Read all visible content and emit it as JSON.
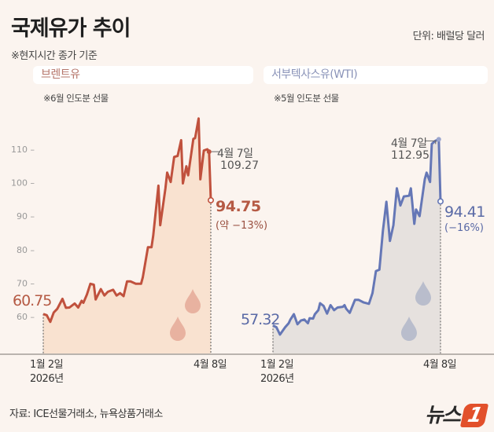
{
  "title": "국제유가 추이",
  "subtitle": "※현지시간 종가 기준",
  "unit": "단위: 배럴당 달러",
  "source": "자료: ICE선물거래소, 뉴욕상품거래소",
  "logo": {
    "text": "뉴스",
    "mark": "1"
  },
  "colors": {
    "brent_line": "#c0513d",
    "brent_fill": "#f9e2d0",
    "wti_line": "#6577b6",
    "wti_fill": "#e6e1de",
    "background": "#fbf4ef"
  },
  "chart_data": [
    {
      "type": "area",
      "title": "브렌트유",
      "note": "※6월 인도분 선물",
      "ylim": [
        50,
        120
      ],
      "yticks": [
        60,
        70,
        80,
        90,
        100,
        110
      ],
      "xlim": [
        "2026-01-02",
        "2026-04-08"
      ],
      "xtick_labels": {
        "start": "1월 2일",
        "start_year": "2026년",
        "end": "4월 8일"
      },
      "start_label": "60.75",
      "peak_annotation": {
        "date_label": "4월 7일",
        "value": "109.27"
      },
      "end_annotation": {
        "value": "94.75",
        "change": "(약 −13%)"
      },
      "points": [
        [
          "2026-01-02",
          60.75
        ],
        [
          "2026-01-04",
          60.4
        ],
        [
          "2026-01-06",
          58.4
        ],
        [
          "2026-01-08",
          61.2
        ],
        [
          "2026-01-10",
          62.3
        ],
        [
          "2026-01-13",
          65.3
        ],
        [
          "2026-01-15",
          62.6
        ],
        [
          "2026-01-17",
          62.7
        ],
        [
          "2026-01-20",
          63.9
        ],
        [
          "2026-01-22",
          62.7
        ],
        [
          "2026-01-24",
          64.7
        ],
        [
          "2026-01-25",
          64.1
        ],
        [
          "2026-01-27",
          66.6
        ],
        [
          "2026-01-29",
          69.8
        ],
        [
          "2026-01-31",
          69.5
        ],
        [
          "2026-02-01",
          65.1
        ],
        [
          "2026-02-04",
          68.2
        ],
        [
          "2026-02-06",
          66.3
        ],
        [
          "2026-02-08",
          67.4
        ],
        [
          "2026-02-11",
          68.0
        ],
        [
          "2026-02-13",
          66.3
        ],
        [
          "2026-02-15",
          67.0
        ],
        [
          "2026-02-17",
          66.1
        ],
        [
          "2026-02-19",
          70.5
        ],
        [
          "2026-02-21",
          70.5
        ],
        [
          "2026-02-24",
          69.8
        ],
        [
          "2026-02-27",
          69.8
        ],
        [
          "2026-02-28",
          71.7
        ],
        [
          "2026-03-03",
          80.7
        ],
        [
          "2026-03-05",
          80.7
        ],
        [
          "2026-03-06",
          84.2
        ],
        [
          "2026-03-09",
          99.1
        ],
        [
          "2026-03-10",
          87.3
        ],
        [
          "2026-03-13",
          98.3
        ],
        [
          "2026-03-14",
          103.0
        ],
        [
          "2026-03-16",
          100.2
        ],
        [
          "2026-03-18",
          107.7
        ],
        [
          "2026-03-20",
          108.0
        ],
        [
          "2026-03-22",
          112.7
        ],
        [
          "2026-03-23",
          99.8
        ],
        [
          "2026-03-25",
          104.9
        ],
        [
          "2026-03-26",
          102.2
        ],
        [
          "2026-03-29",
          113.1
        ],
        [
          "2026-03-30",
          113.3
        ],
        [
          "2026-04-01",
          119.2
        ],
        [
          "2026-04-02",
          101.0
        ],
        [
          "2026-04-04",
          109.6
        ],
        [
          "2026-04-06",
          110.0
        ],
        [
          "2026-04-07",
          109.27
        ],
        [
          "2026-04-08",
          94.75
        ]
      ]
    },
    {
      "type": "area",
      "title": "서부텍사스유(WTI)",
      "note": "※5월 인도분 선물",
      "ylim": [
        50,
        120
      ],
      "xlim": [
        "2026-01-02",
        "2026-04-08"
      ],
      "xtick_labels": {
        "start": "1월 2일",
        "start_year": "2026년",
        "end": "4월 8일"
      },
      "start_label": "57.32",
      "peak_annotation": {
        "date_label": "4월 7일",
        "value": "112.95"
      },
      "end_annotation": {
        "value": "94.41",
        "change": "(−16%)"
      },
      "points": [
        [
          "2026-01-02",
          57.32
        ],
        [
          "2026-01-04",
          56.8
        ],
        [
          "2026-01-06",
          54.6
        ],
        [
          "2026-01-09",
          56.8
        ],
        [
          "2026-01-11",
          58.0
        ],
        [
          "2026-01-12",
          59.1
        ],
        [
          "2026-01-14",
          60.7
        ],
        [
          "2026-01-16",
          57.7
        ],
        [
          "2026-01-18",
          58.8
        ],
        [
          "2026-01-20",
          59.1
        ],
        [
          "2026-01-22",
          58.0
        ],
        [
          "2026-01-23",
          59.5
        ],
        [
          "2026-01-25",
          59.4
        ],
        [
          "2026-01-26",
          60.7
        ],
        [
          "2026-01-28",
          61.9
        ],
        [
          "2026-01-29",
          64.0
        ],
        [
          "2026-01-31",
          63.2
        ],
        [
          "2026-02-02",
          60.9
        ],
        [
          "2026-02-04",
          63.4
        ],
        [
          "2026-02-06",
          61.9
        ],
        [
          "2026-02-08",
          62.7
        ],
        [
          "2026-02-11",
          62.9
        ],
        [
          "2026-02-12",
          63.4
        ],
        [
          "2026-02-13",
          62.3
        ],
        [
          "2026-02-15",
          61.1
        ],
        [
          "2026-02-18",
          65.0
        ],
        [
          "2026-02-20",
          65.0
        ],
        [
          "2026-02-23",
          64.2
        ],
        [
          "2026-02-26",
          63.8
        ],
        [
          "2026-02-28",
          67.0
        ],
        [
          "2026-03-02",
          73.6
        ],
        [
          "2026-03-04",
          74.0
        ],
        [
          "2026-03-06",
          85.7
        ],
        [
          "2026-03-08",
          94.3
        ],
        [
          "2026-03-10",
          82.6
        ],
        [
          "2026-03-12",
          87.3
        ],
        [
          "2026-03-14",
          98.3
        ],
        [
          "2026-03-16",
          93.2
        ],
        [
          "2026-03-18",
          95.9
        ],
        [
          "2026-03-21",
          96.1
        ],
        [
          "2026-03-22",
          98.3
        ],
        [
          "2026-03-24",
          87.7
        ],
        [
          "2026-03-25",
          92.0
        ],
        [
          "2026-03-27",
          90.0
        ],
        [
          "2026-03-30",
          101.0
        ],
        [
          "2026-03-31",
          103.0
        ],
        [
          "2026-04-02",
          100.2
        ],
        [
          "2026-04-03",
          111.6
        ],
        [
          "2026-04-05",
          112.5
        ],
        [
          "2026-04-07",
          112.95
        ],
        [
          "2026-04-08",
          94.41
        ]
      ]
    }
  ]
}
